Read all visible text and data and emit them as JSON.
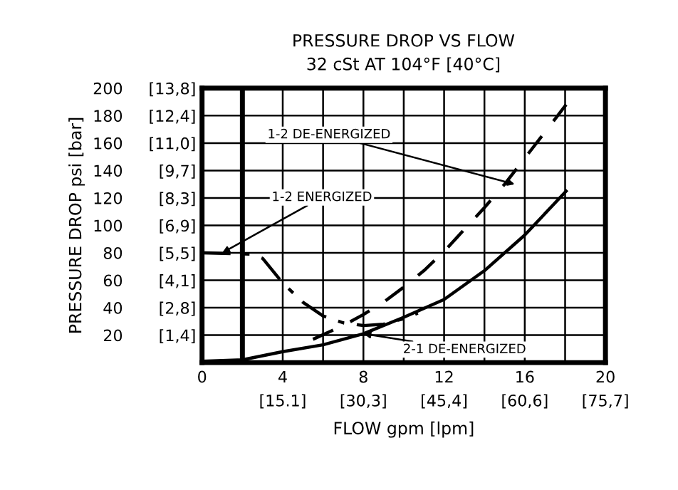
{
  "chart_data": {
    "type": "line",
    "title": "PRESSURE DROP VS FLOW",
    "subtitle": "32 cSt AT 104°F [40°C]",
    "xlabel": "FLOW gpm [lpm]",
    "ylabel": "PRESSURE DROP psi [bar]",
    "xlim": [
      0,
      20
    ],
    "ylim": [
      0,
      200
    ],
    "xticks": [
      0,
      {
        "value": 2,
        "label": null
      },
      4,
      {
        "value": 6,
        "label": null
      },
      8,
      {
        "value": 10,
        "label": null
      },
      12,
      {
        "value": 14,
        "label": null
      },
      16,
      {
        "value": 18,
        "label": null
      },
      20
    ],
    "yticks": [
      20,
      40,
      60,
      80,
      100,
      120,
      140,
      160,
      180,
      200
    ],
    "x2lim": [
      0,
      75.7
    ],
    "x2ticks": [
      {
        "value": 15.14,
        "label": "[15.1]"
      },
      {
        "value": 30.28,
        "label": "[30,3]"
      },
      {
        "value": 45.42,
        "label": "[45,4]"
      },
      {
        "value": 60.56,
        "label": "[60,6]"
      },
      {
        "value": 75.7,
        "label": "[75,7]"
      }
    ],
    "y2lim": [
      0,
      13.8
    ],
    "y2ticks": [
      {
        "value": 1.38,
        "label": "[1,4]"
      },
      {
        "value": 2.76,
        "label": "[2,8]"
      },
      {
        "value": 4.14,
        "label": "[4,1]"
      },
      {
        "value": 5.52,
        "label": "[5,5]"
      },
      {
        "value": 6.9,
        "label": "[6,9]"
      },
      {
        "value": 8.28,
        "label": "[8,3]"
      },
      {
        "value": 9.66,
        "label": "[9,7]"
      },
      {
        "value": 11.04,
        "label": "[11,0]"
      },
      {
        "value": 12.42,
        "label": "[12,4]"
      },
      {
        "value": 13.8,
        "label": "[13,8]"
      }
    ],
    "grid": true,
    "marker": "none",
    "ref_lines": [
      {
        "axis": "x",
        "value": 2,
        "color": "#000000"
      }
    ],
    "series": [
      {
        "color": "#000000",
        "line_style": "solid",
        "x": [
          0,
          2,
          4,
          6,
          8,
          10,
          12,
          14,
          16,
          18.05
        ],
        "values": [
          1,
          2,
          8,
          13,
          21,
          33,
          46,
          67,
          93,
          125
        ]
      },
      {
        "color": "#000000",
        "line_style": "dashed",
        "x": [
          5.5,
          7,
          8,
          9,
          10,
          11,
          12,
          13,
          14,
          15,
          16,
          17,
          18.05
        ],
        "values": [
          17,
          27,
          35,
          44,
          55,
          67,
          81,
          97,
          113,
          130,
          149,
          168,
          188
        ]
      },
      {
        "color": "#000000",
        "line_style": "dashed",
        "x": [
          0,
          2.5,
          3,
          4,
          5,
          6,
          7,
          8,
          9,
          10,
          10.7
        ],
        "values": [
          80,
          79,
          76,
          58,
          44,
          34,
          29,
          27,
          28,
          32,
          36
        ]
      }
    ],
    "annotations": [
      {
        "text": "1-2 DE-ENERGIZED",
        "x": 15.5,
        "y": 130
      },
      {
        "text": "1-2 ENERGIZED",
        "x": 1,
        "y": 80
      },
      {
        "text": "2-1 DE-ENERGIZED",
        "x": 8,
        "y": 21
      }
    ]
  }
}
